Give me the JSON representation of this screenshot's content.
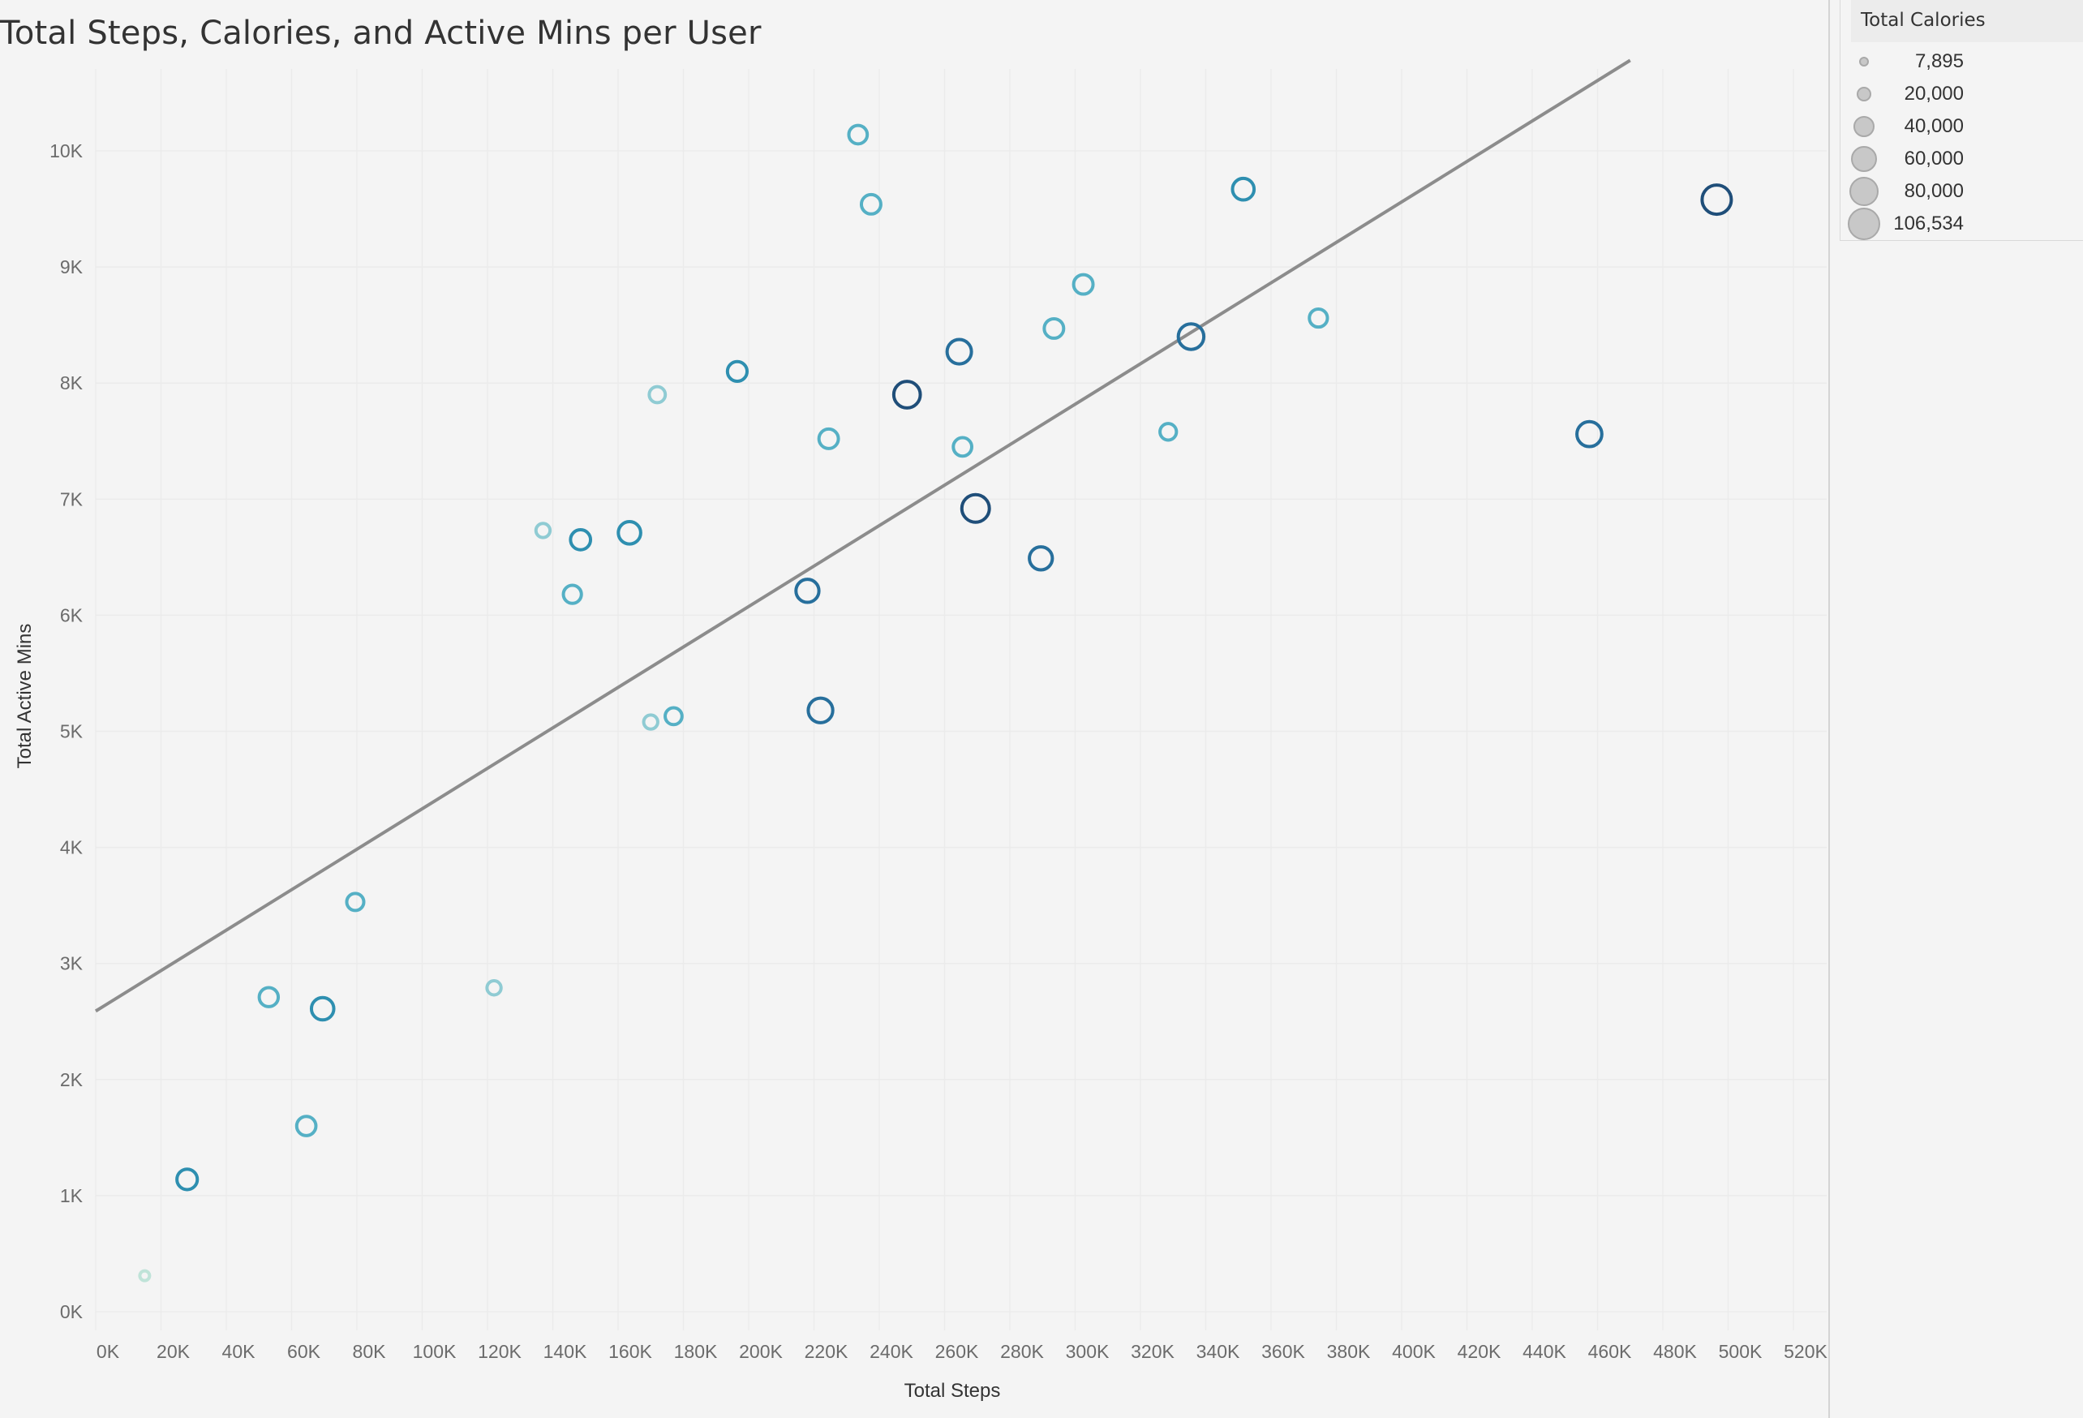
{
  "chart_data": {
    "type": "scatter",
    "title": "Total Steps, Calories, and Active Mins per User",
    "xlabel": "Total Steps",
    "ylabel": "Total Active Mins",
    "xlim": [
      0,
      530000
    ],
    "ylim": [
      0,
      10800
    ],
    "grid": true,
    "x_ticks": [
      "0K",
      "20K",
      "40K",
      "60K",
      "80K",
      "100K",
      "120K",
      "140K",
      "160K",
      "180K",
      "200K",
      "220K",
      "240K",
      "260K",
      "280K",
      "300K",
      "320K",
      "340K",
      "360K",
      "380K",
      "400K",
      "420K",
      "440K",
      "460K",
      "480K",
      "500K",
      "520K"
    ],
    "y_ticks": [
      "0K",
      "1K",
      "2K",
      "3K",
      "4K",
      "5K",
      "6K",
      "7K",
      "8K",
      "9K",
      "10K"
    ],
    "trend_line": {
      "x": [
        0,
        470000
      ],
      "y": [
        2590,
        10780
      ],
      "color": "#8c8c8c"
    },
    "size_legend": {
      "title": "Total Calories",
      "placement": "top-right",
      "values": [
        "7,895",
        "20,000",
        "40,000",
        "60,000",
        "80,000",
        "106,534"
      ]
    },
    "size_range": [
      7895,
      106534
    ],
    "color_scale": [
      "#bfe3d8",
      "#8fcbd3",
      "#55b0c5",
      "#2e8fb0",
      "#276f9c",
      "#1f4e79"
    ],
    "points": [
      {
        "x": 15000,
        "y": 310,
        "calories": 7895
      },
      {
        "x": 28000,
        "y": 1140,
        "calories": 62000
      },
      {
        "x": 53000,
        "y": 2710,
        "calories": 55000
      },
      {
        "x": 64500,
        "y": 1600,
        "calories": 56000
      },
      {
        "x": 69500,
        "y": 2610,
        "calories": 72000
      },
      {
        "x": 79500,
        "y": 3530,
        "calories": 45000
      },
      {
        "x": 122000,
        "y": 2790,
        "calories": 30000
      },
      {
        "x": 137000,
        "y": 6730,
        "calories": 30000
      },
      {
        "x": 146000,
        "y": 6180,
        "calories": 50000
      },
      {
        "x": 148500,
        "y": 6650,
        "calories": 60000
      },
      {
        "x": 163500,
        "y": 6710,
        "calories": 72000
      },
      {
        "x": 170000,
        "y": 5080,
        "calories": 30000
      },
      {
        "x": 172000,
        "y": 7900,
        "calories": 40000
      },
      {
        "x": 177000,
        "y": 5130,
        "calories": 44000
      },
      {
        "x": 196500,
        "y": 8100,
        "calories": 58000
      },
      {
        "x": 218000,
        "y": 6210,
        "calories": 75000
      },
      {
        "x": 222000,
        "y": 5180,
        "calories": 83000
      },
      {
        "x": 224500,
        "y": 7520,
        "calories": 57000
      },
      {
        "x": 233500,
        "y": 10140,
        "calories": 52000
      },
      {
        "x": 237500,
        "y": 9540,
        "calories": 57000
      },
      {
        "x": 248500,
        "y": 7900,
        "calories": 93000
      },
      {
        "x": 264500,
        "y": 8270,
        "calories": 82000
      },
      {
        "x": 265500,
        "y": 7450,
        "calories": 52000
      },
      {
        "x": 269500,
        "y": 6920,
        "calories": 98000
      },
      {
        "x": 289500,
        "y": 6490,
        "calories": 75000
      },
      {
        "x": 293500,
        "y": 8470,
        "calories": 57000
      },
      {
        "x": 302500,
        "y": 8850,
        "calories": 57000
      },
      {
        "x": 328500,
        "y": 7580,
        "calories": 42000
      },
      {
        "x": 335500,
        "y": 8400,
        "calories": 88000
      },
      {
        "x": 351500,
        "y": 9670,
        "calories": 68000
      },
      {
        "x": 374500,
        "y": 8560,
        "calories": 50000
      },
      {
        "x": 457500,
        "y": 7560,
        "calories": 85000
      },
      {
        "x": 496500,
        "y": 9580,
        "calories": 106534
      }
    ]
  }
}
